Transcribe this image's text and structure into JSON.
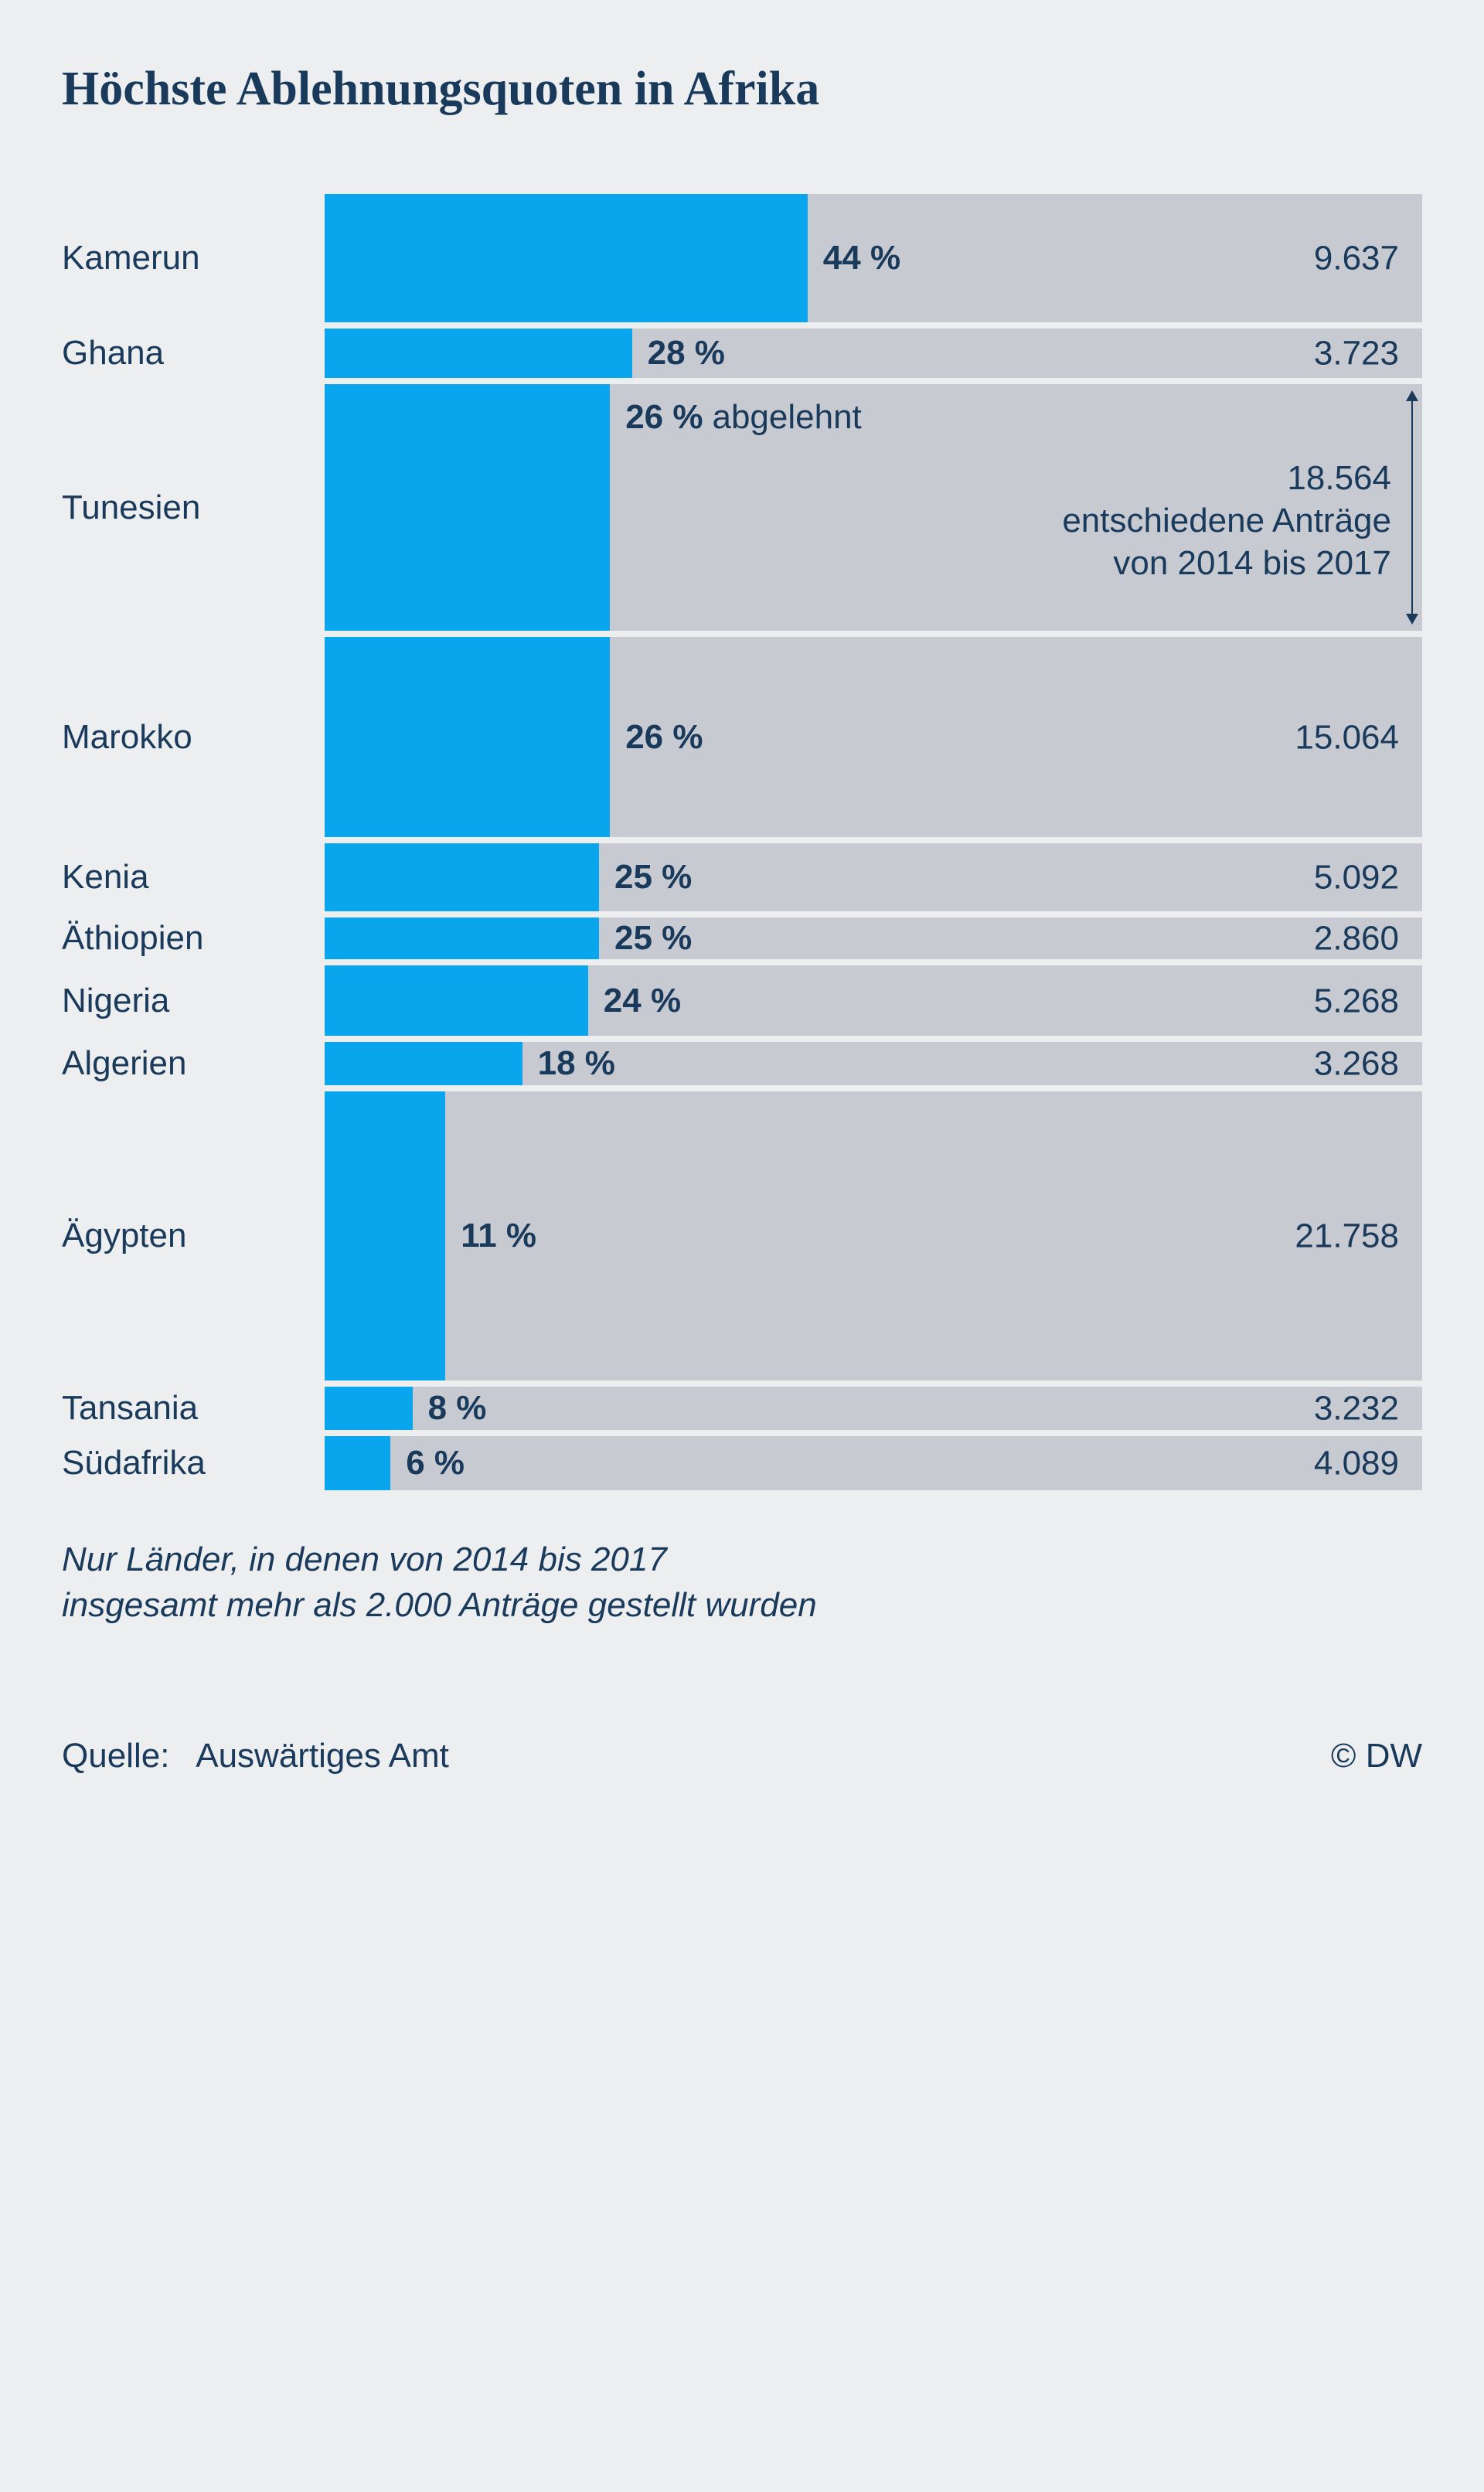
{
  "chart": {
    "type": "bar-horizontal",
    "title": "Höchste Ablehnungsquoten in Afrika",
    "title_fontsize": 62,
    "label_fontsize": 44,
    "value_fontsize": 44,
    "footnote_fontsize": 44,
    "footer_fontsize": 44,
    "colors": {
      "background": "#eceef0",
      "bar_fill": "#09a6ee",
      "bar_track": "#c7cbd1",
      "text": "#1a3a5c"
    },
    "x_max_pct": 100,
    "label_col_width": 340,
    "max_total": 21758,
    "min_bar_height": 54,
    "height_scale": 0.0172,
    "rows": [
      {
        "country": "Kamerun",
        "pct": 44,
        "pct_label": "44 %",
        "total": 9637,
        "total_label": "9.637"
      },
      {
        "country": "Ghana",
        "pct": 28,
        "pct_label": "28 %",
        "total": 3723,
        "total_label": "3.723"
      },
      {
        "country": "Tunesien",
        "pct": 26,
        "pct_label": "26 %",
        "pct_suffix": "abgelehnt",
        "total": 18564,
        "total_label": "18.564",
        "annotation_lines": [
          "entschiedene Anträge",
          "von 2014 bis 2017"
        ],
        "has_arrow": true
      },
      {
        "country": "Marokko",
        "pct": 26,
        "pct_label": "26 %",
        "total": 15064,
        "total_label": "15.064"
      },
      {
        "country": "Kenia",
        "pct": 25,
        "pct_label": "25 %",
        "total": 5092,
        "total_label": "5.092"
      },
      {
        "country": "Äthiopien",
        "pct": 25,
        "pct_label": "25 %",
        "total": 2860,
        "total_label": "2.860"
      },
      {
        "country": "Nigeria",
        "pct": 24,
        "pct_label": "24 %",
        "total": 5268,
        "total_label": "5.268"
      },
      {
        "country": "Algerien",
        "pct": 18,
        "pct_label": "18 %",
        "total": 3268,
        "total_label": "3.268"
      },
      {
        "country": "Ägypten",
        "pct": 11,
        "pct_label": "11 %",
        "total": 21758,
        "total_label": "21.758"
      },
      {
        "country": "Tansania",
        "pct": 8,
        "pct_label": "8 %",
        "total": 3232,
        "total_label": "3.232"
      },
      {
        "country": "Südafrika",
        "pct": 6,
        "pct_label": "6 %",
        "total": 4089,
        "total_label": "4.089"
      }
    ],
    "footnote_lines": [
      "Nur Länder, in denen von 2014 bis 2017",
      "insgesamt mehr als 2.000 Anträge gestellt wurden"
    ],
    "source_label": "Quelle:",
    "source_value": "Auswärtiges Amt",
    "copyright": "© DW"
  }
}
